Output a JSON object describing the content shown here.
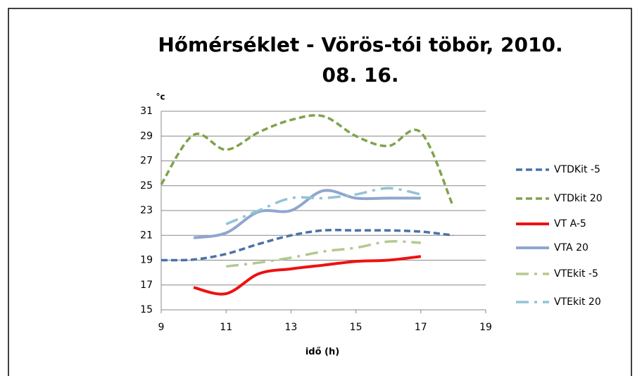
{
  "chart_data": {
    "type": "line",
    "title": "Hőmérséklet - Vörös-tói töbör, 2010.",
    "subtitle": "08. 16.",
    "y_label": "°c",
    "x_label": "idő (h)",
    "x": [
      9,
      10,
      11,
      12,
      13,
      14,
      15,
      16,
      17,
      18
    ],
    "xlim": [
      9,
      19
    ],
    "xticks": [
      9,
      11,
      13,
      15,
      17,
      19
    ],
    "ylim": [
      15,
      31
    ],
    "yticks": [
      15,
      17,
      19,
      21,
      23,
      25,
      27,
      29,
      31
    ],
    "grid": true,
    "legend": "right",
    "series": [
      {
        "name": "VTDKit -5",
        "color": "#4a72a8",
        "style": "dashed",
        "values": [
          19.0,
          19.05,
          19.5,
          20.3,
          21.0,
          21.4,
          21.4,
          21.4,
          21.3,
          21.0
        ]
      },
      {
        "name": "VTDkit 20",
        "color": "#7fa34a",
        "style": "dashed",
        "values": [
          25.1,
          29.1,
          27.9,
          29.3,
          30.3,
          30.6,
          29.0,
          28.2,
          29.3,
          23.3
        ]
      },
      {
        "name": "VT A-5",
        "color": "#ee1111",
        "style": "solid",
        "values": [
          null,
          16.8,
          16.3,
          17.9,
          18.3,
          18.6,
          18.9,
          19.0,
          19.3,
          null
        ]
      },
      {
        "name": "VTA 20",
        "color": "#8fa6cf",
        "style": "solid",
        "values": [
          null,
          20.8,
          21.2,
          22.9,
          23.0,
          24.6,
          24.0,
          24.0,
          24.0,
          null
        ]
      },
      {
        "name": "VTEkit -5",
        "color": "#b3c98e",
        "style": "dashdot",
        "values": [
          null,
          null,
          18.5,
          18.8,
          19.2,
          19.7,
          20.0,
          20.5,
          20.4,
          null
        ]
      },
      {
        "name": "VTEkit 20",
        "color": "#92c3d6",
        "style": "dashdot",
        "values": [
          null,
          null,
          21.9,
          23.0,
          24.0,
          24.0,
          24.3,
          24.8,
          24.3,
          null
        ]
      }
    ]
  }
}
